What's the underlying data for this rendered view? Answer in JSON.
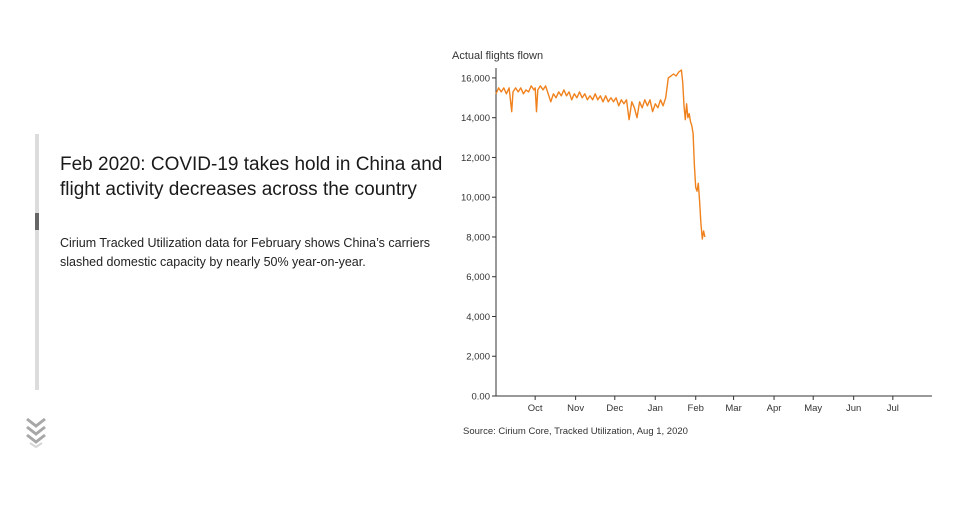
{
  "story": {
    "headline": "Feb 2020: COVID-19 takes hold in China and flight activity decreases across the country",
    "body": "Cirium Tracked Utilization data for February shows China’s carriers slashed domestic capacity by nearly 50% year-on-year.",
    "progress": 0.33
  },
  "nav": {
    "scroll_icon": "double-chevron-down-icon"
  },
  "colors": {
    "line": "#f0821e",
    "axis": "#333333",
    "track": "#dcdcdc",
    "thumb": "#666666"
  },
  "chart_data": {
    "type": "line",
    "title": "",
    "ylabel": "Actual flights flown",
    "xlabel": "",
    "source": "Source: Cirium Core, Tracked Utilization, Aug 1, 2020",
    "x_range": [
      "2019-09-01",
      "2020-07-31"
    ],
    "ylim": [
      0,
      16500
    ],
    "y_ticks": [
      {
        "value": 0,
        "label": "0.00"
      },
      {
        "value": 2000,
        "label": "2,000"
      },
      {
        "value": 4000,
        "label": "4,000"
      },
      {
        "value": 6000,
        "label": "6,000"
      },
      {
        "value": 8000,
        "label": "8,000"
      },
      {
        "value": 10000,
        "label": "10,000"
      },
      {
        "value": 12000,
        "label": "12,000"
      },
      {
        "value": 14000,
        "label": "14,000"
      },
      {
        "value": 16000,
        "label": "16,000"
      }
    ],
    "x_ticks": [
      {
        "date": "2019-10-01",
        "label": "Oct"
      },
      {
        "date": "2019-11-01",
        "label": "Nov"
      },
      {
        "date": "2019-12-01",
        "label": "Dec"
      },
      {
        "date": "2020-01-01",
        "label": "Jan"
      },
      {
        "date": "2020-02-01",
        "label": "Feb"
      },
      {
        "date": "2020-03-01",
        "label": "Mar"
      },
      {
        "date": "2020-04-01",
        "label": "Apr"
      },
      {
        "date": "2020-05-01",
        "label": "May"
      },
      {
        "date": "2020-06-01",
        "label": "Jun"
      },
      {
        "date": "2020-07-01",
        "label": "Jul"
      }
    ],
    "grid": false,
    "series": [
      {
        "color": "#f0821e",
        "points": [
          [
            "2019-09-01",
            15200
          ],
          [
            "2019-09-03",
            15500
          ],
          [
            "2019-09-05",
            15300
          ],
          [
            "2019-09-07",
            15500
          ],
          [
            "2019-09-09",
            15200
          ],
          [
            "2019-09-11",
            15500
          ],
          [
            "2019-09-13",
            14300
          ],
          [
            "2019-09-14",
            15300
          ],
          [
            "2019-09-16",
            15500
          ],
          [
            "2019-09-18",
            15300
          ],
          [
            "2019-09-20",
            15500
          ],
          [
            "2019-09-22",
            15200
          ],
          [
            "2019-09-24",
            15400
          ],
          [
            "2019-09-26",
            15300
          ],
          [
            "2019-09-28",
            15600
          ],
          [
            "2019-09-30",
            15400
          ],
          [
            "2019-10-01",
            15500
          ],
          [
            "2019-10-02",
            14300
          ],
          [
            "2019-10-03",
            15400
          ],
          [
            "2019-10-05",
            15600
          ],
          [
            "2019-10-07",
            15400
          ],
          [
            "2019-10-09",
            15600
          ],
          [
            "2019-10-11",
            15200
          ],
          [
            "2019-10-13",
            14800
          ],
          [
            "2019-10-15",
            15200
          ],
          [
            "2019-10-17",
            15000
          ],
          [
            "2019-10-19",
            15300
          ],
          [
            "2019-10-21",
            15100
          ],
          [
            "2019-10-23",
            15400
          ],
          [
            "2019-10-25",
            15100
          ],
          [
            "2019-10-27",
            15300
          ],
          [
            "2019-10-29",
            14900
          ],
          [
            "2019-10-31",
            15200
          ],
          [
            "2019-11-02",
            15000
          ],
          [
            "2019-11-04",
            15300
          ],
          [
            "2019-11-06",
            15000
          ],
          [
            "2019-11-08",
            15200
          ],
          [
            "2019-11-10",
            14900
          ],
          [
            "2019-11-12",
            15100
          ],
          [
            "2019-11-14",
            14900
          ],
          [
            "2019-11-16",
            15200
          ],
          [
            "2019-11-18",
            14900
          ],
          [
            "2019-11-20",
            15100
          ],
          [
            "2019-11-22",
            14800
          ],
          [
            "2019-11-24",
            15100
          ],
          [
            "2019-11-26",
            14800
          ],
          [
            "2019-11-28",
            15000
          ],
          [
            "2019-11-30",
            14800
          ],
          [
            "2019-12-02",
            15000
          ],
          [
            "2019-12-04",
            14600
          ],
          [
            "2019-12-06",
            14900
          ],
          [
            "2019-12-08",
            14700
          ],
          [
            "2019-12-10",
            14900
          ],
          [
            "2019-12-12",
            13900
          ],
          [
            "2019-12-14",
            14800
          ],
          [
            "2019-12-16",
            14500
          ],
          [
            "2019-12-18",
            14000
          ],
          [
            "2019-12-20",
            14800
          ],
          [
            "2019-12-22",
            14500
          ],
          [
            "2019-12-24",
            14900
          ],
          [
            "2019-12-26",
            14600
          ],
          [
            "2019-12-28",
            14900
          ],
          [
            "2019-12-30",
            14300
          ],
          [
            "2020-01-01",
            14700
          ],
          [
            "2020-01-03",
            14500
          ],
          [
            "2020-01-05",
            14900
          ],
          [
            "2020-01-07",
            14600
          ],
          [
            "2020-01-09",
            15000
          ],
          [
            "2020-01-11",
            16000
          ],
          [
            "2020-01-13",
            16100
          ],
          [
            "2020-01-15",
            16200
          ],
          [
            "2020-01-17",
            16100
          ],
          [
            "2020-01-19",
            16300
          ],
          [
            "2020-01-21",
            16400
          ],
          [
            "2020-01-22",
            15800
          ],
          [
            "2020-01-23",
            14600
          ],
          [
            "2020-01-24",
            13900
          ],
          [
            "2020-01-25",
            14700
          ],
          [
            "2020-01-26",
            14000
          ],
          [
            "2020-01-27",
            14200
          ],
          [
            "2020-01-28",
            13800
          ],
          [
            "2020-01-29",
            13600
          ],
          [
            "2020-01-30",
            13200
          ],
          [
            "2020-01-31",
            11600
          ],
          [
            "2020-02-01",
            10500
          ],
          [
            "2020-02-02",
            10300
          ],
          [
            "2020-02-03",
            10700
          ],
          [
            "2020-02-04",
            9800
          ],
          [
            "2020-02-05",
            8700
          ],
          [
            "2020-02-06",
            7900
          ],
          [
            "2020-02-07",
            8300
          ],
          [
            "2020-02-08",
            8000
          ]
        ]
      }
    ]
  }
}
